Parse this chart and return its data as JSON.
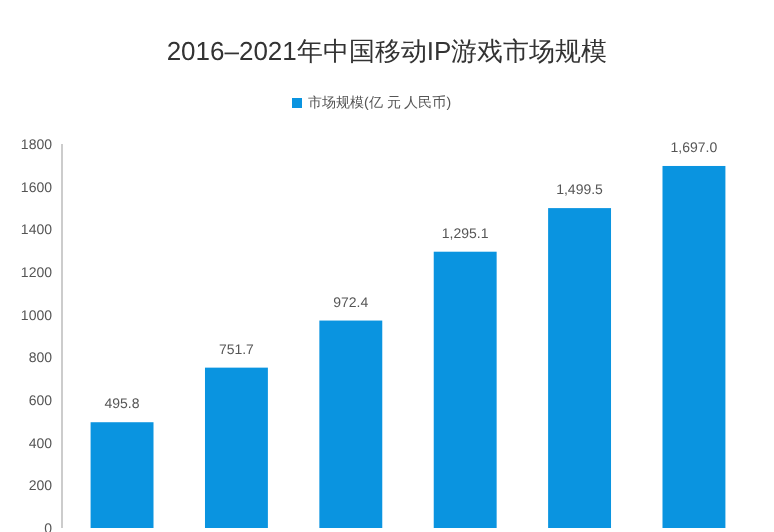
{
  "chart_data": {
    "type": "bar",
    "title": "2016–2021年中国移动IP游戏市场规模",
    "categories": [
      null,
      null,
      null,
      null,
      null,
      null
    ],
    "series": [
      {
        "name": "市场规模(亿 元 人民币)",
        "color": "#0a94e0",
        "values": [
          495.8,
          751.7,
          972.4,
          1295.1,
          1499.5,
          1697.0
        ]
      }
    ],
    "value_labels": [
      "495.8",
      "751.7",
      "972.4",
      "1,295.1",
      "1,499.5",
      "1,697.0"
    ],
    "ylim": [
      0,
      1800
    ],
    "yticks": [
      0,
      200,
      400,
      600,
      800,
      1000,
      1200,
      1400,
      1600,
      1800
    ],
    "legend": "top",
    "grid": false,
    "tick_labels": "y"
  }
}
